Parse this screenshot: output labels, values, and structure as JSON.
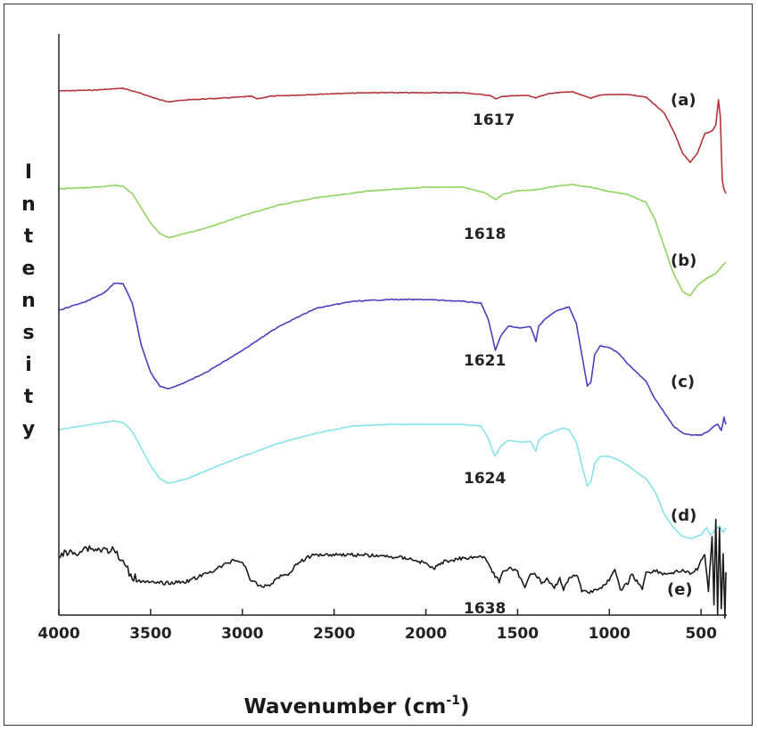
{
  "chart_data": {
    "type": "line",
    "title": "",
    "xlabel": "Wavenumber (cm",
    "xlabel_sup": "-1",
    "xlabel_close": ")",
    "ylabel": "Intensity",
    "xlim": [
      4000,
      360
    ],
    "x_ticks": [
      4000,
      3500,
      3000,
      2500,
      2000,
      1500,
      1000,
      500
    ],
    "grid": false,
    "series": [
      {
        "name": "(a)",
        "color": "#b5343c",
        "peak_label": "1617",
        "noise": 0.8,
        "points": [
          [
            4000,
            0
          ],
          [
            3800,
            -1
          ],
          [
            3650,
            -3
          ],
          [
            3550,
            3
          ],
          [
            3450,
            10
          ],
          [
            3400,
            12
          ],
          [
            3300,
            10
          ],
          [
            3100,
            8
          ],
          [
            2950,
            6
          ],
          [
            2920,
            9
          ],
          [
            2850,
            6
          ],
          [
            2500,
            3
          ],
          [
            2300,
            2
          ],
          [
            2000,
            2
          ],
          [
            1800,
            2
          ],
          [
            1650,
            5
          ],
          [
            1617,
            9
          ],
          [
            1580,
            6
          ],
          [
            1450,
            5
          ],
          [
            1400,
            8
          ],
          [
            1350,
            4
          ],
          [
            1300,
            2
          ],
          [
            1200,
            1
          ],
          [
            1150,
            5
          ],
          [
            1100,
            8
          ],
          [
            1050,
            5
          ],
          [
            1000,
            4
          ],
          [
            900,
            4
          ],
          [
            800,
            7
          ],
          [
            700,
            25
          ],
          [
            650,
            45
          ],
          [
            600,
            70
          ],
          [
            560,
            80
          ],
          [
            520,
            70
          ],
          [
            480,
            48
          ],
          [
            440,
            45
          ],
          [
            420,
            38
          ],
          [
            405,
            10
          ],
          [
            395,
            30
          ],
          [
            385,
            100
          ],
          [
            375,
            110
          ],
          [
            365,
            115
          ]
        ]
      },
      {
        "name": "(b)",
        "color": "#8fd460",
        "peak_label": "1618",
        "noise": 0.8,
        "points": [
          [
            4000,
            0
          ],
          [
            3800,
            -2
          ],
          [
            3700,
            -4
          ],
          [
            3650,
            -3
          ],
          [
            3600,
            5
          ],
          [
            3500,
            38
          ],
          [
            3450,
            50
          ],
          [
            3400,
            55
          ],
          [
            3350,
            52
          ],
          [
            3200,
            44
          ],
          [
            3000,
            30
          ],
          [
            2800,
            18
          ],
          [
            2600,
            10
          ],
          [
            2300,
            2
          ],
          [
            2000,
            -2
          ],
          [
            1800,
            -2
          ],
          [
            1680,
            4
          ],
          [
            1618,
            12
          ],
          [
            1580,
            6
          ],
          [
            1500,
            2
          ],
          [
            1400,
            1
          ],
          [
            1300,
            -3
          ],
          [
            1200,
            -5
          ],
          [
            1100,
            -2
          ],
          [
            1000,
            3
          ],
          [
            900,
            6
          ],
          [
            800,
            15
          ],
          [
            750,
            35
          ],
          [
            700,
            65
          ],
          [
            650,
            95
          ],
          [
            600,
            115
          ],
          [
            560,
            120
          ],
          [
            520,
            108
          ],
          [
            480,
            102
          ],
          [
            450,
            98
          ],
          [
            420,
            95
          ],
          [
            400,
            90
          ],
          [
            380,
            85
          ],
          [
            365,
            82
          ]
        ]
      },
      {
        "name": "(c)",
        "color": "#4a3fbd",
        "peak_label": "1621",
        "noise": 0.9,
        "points": [
          [
            4000,
            0
          ],
          [
            3850,
            -10
          ],
          [
            3750,
            -20
          ],
          [
            3700,
            -30
          ],
          [
            3650,
            -30
          ],
          [
            3600,
            -8
          ],
          [
            3550,
            40
          ],
          [
            3500,
            70
          ],
          [
            3450,
            85
          ],
          [
            3400,
            88
          ],
          [
            3300,
            80
          ],
          [
            3200,
            70
          ],
          [
            3000,
            45
          ],
          [
            2800,
            18
          ],
          [
            2600,
            -2
          ],
          [
            2400,
            -10
          ],
          [
            2200,
            -12
          ],
          [
            2000,
            -12
          ],
          [
            1800,
            -10
          ],
          [
            1700,
            -8
          ],
          [
            1660,
            10
          ],
          [
            1621,
            45
          ],
          [
            1590,
            28
          ],
          [
            1550,
            18
          ],
          [
            1480,
            20
          ],
          [
            1430,
            18
          ],
          [
            1400,
            35
          ],
          [
            1385,
            18
          ],
          [
            1350,
            10
          ],
          [
            1300,
            2
          ],
          [
            1250,
            -2
          ],
          [
            1220,
            -4
          ],
          [
            1180,
            15
          ],
          [
            1150,
            50
          ],
          [
            1120,
            85
          ],
          [
            1100,
            80
          ],
          [
            1080,
            50
          ],
          [
            1050,
            40
          ],
          [
            1000,
            42
          ],
          [
            950,
            48
          ],
          [
            900,
            60
          ],
          [
            850,
            70
          ],
          [
            800,
            80
          ],
          [
            750,
            100
          ],
          [
            700,
            115
          ],
          [
            650,
            130
          ],
          [
            600,
            138
          ],
          [
            550,
            140
          ],
          [
            500,
            140
          ],
          [
            460,
            136
          ],
          [
            430,
            130
          ],
          [
            410,
            128
          ],
          [
            390,
            135
          ],
          [
            375,
            120
          ],
          [
            365,
            128
          ]
        ]
      },
      {
        "name": "(d)",
        "color": "#86e3ea",
        "peak_label": "1624",
        "noise": 0.6,
        "points": [
          [
            4000,
            0
          ],
          [
            3850,
            -5
          ],
          [
            3700,
            -10
          ],
          [
            3650,
            -8
          ],
          [
            3600,
            2
          ],
          [
            3500,
            40
          ],
          [
            3450,
            55
          ],
          [
            3400,
            60
          ],
          [
            3300,
            55
          ],
          [
            3150,
            42
          ],
          [
            3000,
            30
          ],
          [
            2800,
            15
          ],
          [
            2600,
            4
          ],
          [
            2400,
            -4
          ],
          [
            2200,
            -6
          ],
          [
            2000,
            -6
          ],
          [
            1800,
            -6
          ],
          [
            1700,
            -4
          ],
          [
            1660,
            10
          ],
          [
            1624,
            30
          ],
          [
            1590,
            18
          ],
          [
            1550,
            12
          ],
          [
            1480,
            14
          ],
          [
            1430,
            13
          ],
          [
            1400,
            24
          ],
          [
            1385,
            12
          ],
          [
            1350,
            6
          ],
          [
            1300,
            2
          ],
          [
            1250,
            -2
          ],
          [
            1220,
            0
          ],
          [
            1180,
            14
          ],
          [
            1150,
            40
          ],
          [
            1120,
            63
          ],
          [
            1100,
            58
          ],
          [
            1080,
            38
          ],
          [
            1050,
            30
          ],
          [
            1000,
            30
          ],
          [
            950,
            34
          ],
          [
            900,
            40
          ],
          [
            850,
            48
          ],
          [
            800,
            55
          ],
          [
            750,
            70
          ],
          [
            700,
            95
          ],
          [
            650,
            110
          ],
          [
            600,
            120
          ],
          [
            550,
            122
          ],
          [
            500,
            118
          ],
          [
            470,
            110
          ],
          [
            450,
            118
          ],
          [
            420,
            112
          ],
          [
            400,
            108
          ],
          [
            380,
            115
          ],
          [
            365,
            110
          ]
        ]
      },
      {
        "name": "(e)",
        "color": "#1a1a1a",
        "peak_label": "1638",
        "noise": 4,
        "points": [
          [
            4000,
            0
          ],
          [
            3900,
            -3
          ],
          [
            3850,
            -8
          ],
          [
            3800,
            -6
          ],
          [
            3700,
            -5
          ],
          [
            3650,
            10
          ],
          [
            3600,
            25
          ],
          [
            3500,
            32
          ],
          [
            3400,
            32
          ],
          [
            3300,
            30
          ],
          [
            3200,
            22
          ],
          [
            3100,
            12
          ],
          [
            3050,
            6
          ],
          [
            3000,
            8
          ],
          [
            2950,
            30
          ],
          [
            2900,
            36
          ],
          [
            2850,
            34
          ],
          [
            2800,
            25
          ],
          [
            2750,
            22
          ],
          [
            2700,
            10
          ],
          [
            2650,
            4
          ],
          [
            2600,
            0
          ],
          [
            2450,
            0
          ],
          [
            2300,
            1
          ],
          [
            2100,
            4
          ],
          [
            2000,
            10
          ],
          [
            1960,
            16
          ],
          [
            1900,
            8
          ],
          [
            1800,
            4
          ],
          [
            1700,
            2
          ],
          [
            1660,
            8
          ],
          [
            1638,
            20
          ],
          [
            1600,
            30
          ],
          [
            1580,
            18
          ],
          [
            1540,
            16
          ],
          [
            1500,
            20
          ],
          [
            1460,
            38
          ],
          [
            1430,
            20
          ],
          [
            1400,
            22
          ],
          [
            1370,
            32
          ],
          [
            1340,
            28
          ],
          [
            1300,
            38
          ],
          [
            1270,
            26
          ],
          [
            1250,
            40
          ],
          [
            1220,
            26
          ],
          [
            1180,
            22
          ],
          [
            1150,
            40
          ],
          [
            1100,
            42
          ],
          [
            1050,
            38
          ],
          [
            1000,
            28
          ],
          [
            970,
            18
          ],
          [
            940,
            40
          ],
          [
            900,
            32
          ],
          [
            880,
            22
          ],
          [
            850,
            30
          ],
          [
            820,
            38
          ],
          [
            800,
            20
          ],
          [
            750,
            18
          ],
          [
            700,
            22
          ],
          [
            650,
            20
          ],
          [
            600,
            18
          ],
          [
            560,
            22
          ],
          [
            520,
            16
          ],
          [
            500,
            8
          ],
          [
            480,
            0
          ],
          [
            460,
            40
          ],
          [
            440,
            -20
          ],
          [
            430,
            55
          ],
          [
            420,
            -40
          ],
          [
            410,
            65
          ],
          [
            400,
            -30
          ],
          [
            390,
            60
          ],
          [
            380,
            0
          ],
          [
            370,
            70
          ],
          [
            365,
            20
          ]
        ]
      }
    ]
  }
}
